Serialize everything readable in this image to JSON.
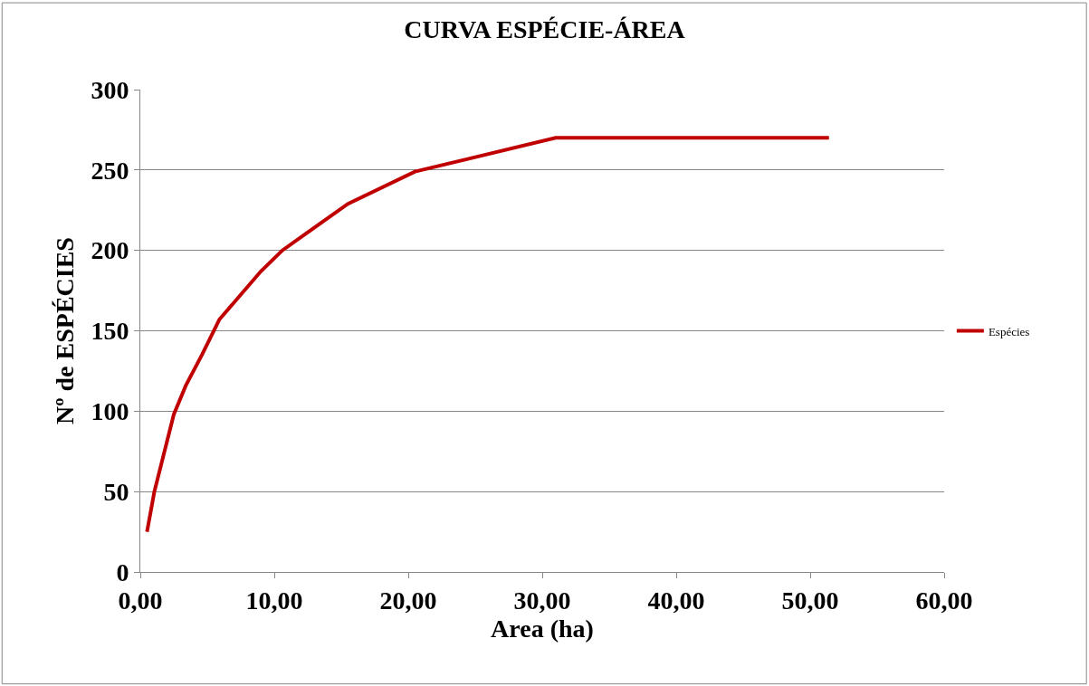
{
  "chart_data": {
    "type": "line",
    "title": "CURVA ESPÉCIE-ÁREA",
    "xlabel": "Area (ha)",
    "ylabel": "Nº de ESPÉCIES",
    "x": [
      0.5,
      1.05,
      2.5,
      3.4,
      4.6,
      5.9,
      9.0,
      10.6,
      15.5,
      20.5,
      31.0,
      51.4
    ],
    "series": [
      {
        "name": "Espécies",
        "color": "#c00000",
        "values": [
          25,
          50,
          98,
          116,
          135,
          157,
          187,
          200,
          229,
          249,
          270,
          270
        ]
      }
    ],
    "xlim": [
      0,
      60
    ],
    "xticks": [
      {
        "value": 0,
        "label": "0,00"
      },
      {
        "value": 10,
        "label": "10,00"
      },
      {
        "value": 20,
        "label": "20,00"
      },
      {
        "value": 30,
        "label": "30,00"
      },
      {
        "value": 40,
        "label": "40,00"
      },
      {
        "value": 50,
        "label": "50,00"
      },
      {
        "value": 60,
        "label": "60,00"
      }
    ],
    "ylim": [
      0,
      300
    ],
    "yticks": [
      0,
      50,
      100,
      150,
      200,
      250,
      300
    ],
    "grid": "y",
    "legend": "right",
    "marker": "none",
    "line_style": "solid"
  }
}
